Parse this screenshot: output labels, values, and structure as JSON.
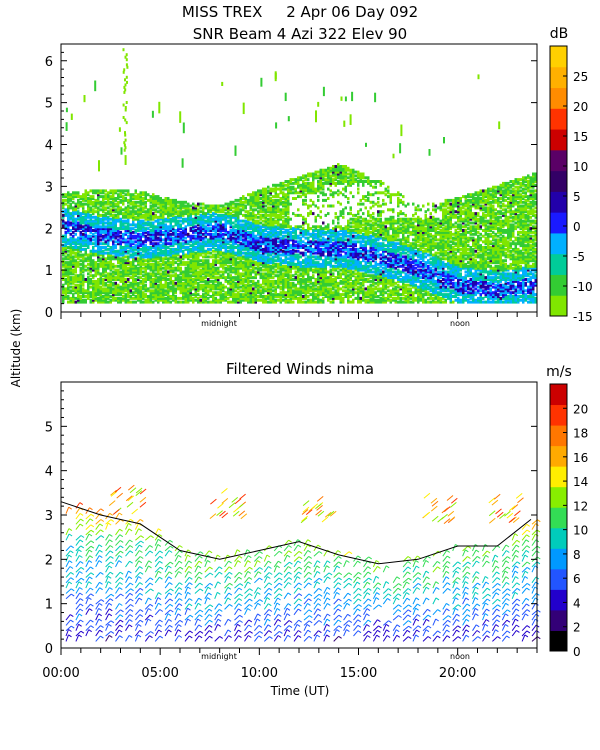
{
  "header": {
    "line1": "MISS TREX     2 Apr 06 Day 092",
    "line2": "SNR Beam 4 Azi 322 Elev 90"
  },
  "shared": {
    "ylabel": "Altitude (km)",
    "xlabel": "Time (UT)",
    "x_ticks": [
      "00:00",
      "05:00",
      "10:00",
      "15:00",
      "20:00"
    ],
    "marker_midnight": "midnight",
    "marker_noon": "noon"
  },
  "chart_data": [
    {
      "type": "heatmap",
      "title": "SNR Beam 4 Azi 322 Elev 90",
      "ylabel": "Altitude (km)",
      "colorbar_unit": "dB",
      "colorbar_ticks": [
        "25",
        "20",
        "15",
        "10",
        "5",
        "0",
        "-5",
        "-10",
        "-15"
      ],
      "colorbar_range": [
        -15,
        30
      ],
      "colorbar_colors": [
        "#80e600",
        "#33cc33",
        "#00cc99",
        "#00b0ff",
        "#1a1aff",
        "#2200aa",
        "#330066",
        "#5a0066",
        "#cc0000",
        "#ff3300",
        "#ff8c00",
        "#ffb000",
        "#ffd000"
      ],
      "y_ticks": [
        "0",
        "1",
        "2",
        "3",
        "4",
        "5",
        "6"
      ],
      "ylim": [
        0,
        6.4
      ],
      "xlim_hours": [
        0,
        24
      ],
      "bands": [
        {
          "name": "main echo layer top",
          "alt_km": [
            2.8,
            2.9,
            2.85,
            2.6,
            2.5,
            2.9,
            3.2,
            3.5,
            3.1,
            2.5,
            2.7,
            3.0,
            3.3
          ]
        },
        {
          "name": "high SNR core",
          "alt_km": [
            2.0,
            1.8,
            1.7,
            1.8,
            1.9,
            1.6,
            1.5,
            1.5,
            1.3,
            1.0,
            0.6,
            0.5,
            0.6
          ]
        }
      ]
    },
    {
      "type": "scatter",
      "title": "Filtered Winds nima",
      "ylabel": "Altitude (km)",
      "xlabel": "Time (UT)",
      "colorbar_unit": "m/s",
      "colorbar_ticks": [
        "20",
        "18",
        "16",
        "14",
        "12",
        "10",
        "8",
        "6",
        "4",
        "2",
        "0"
      ],
      "colorbar_range": [
        0,
        22
      ],
      "colorbar_colors": [
        "#000000",
        "#330077",
        "#2200cc",
        "#2255ff",
        "#0099ff",
        "#00ccbb",
        "#33dd55",
        "#88ee00",
        "#ffee00",
        "#ffaa00",
        "#ff7700",
        "#ff3300",
        "#cc0000"
      ],
      "y_ticks": [
        "0",
        "1",
        "2",
        "3",
        "4",
        "5"
      ],
      "ylim": [
        0,
        6
      ],
      "xlim_hours": [
        0,
        24
      ],
      "x_tick_values_hours": [
        0,
        5,
        10,
        15,
        20
      ],
      "wind_top_alt_km": [
        3.3,
        3.0,
        2.8,
        2.2,
        2.0,
        2.2,
        2.4,
        2.1,
        1.9,
        2.0,
        2.3,
        2.3,
        2.9
      ]
    }
  ]
}
